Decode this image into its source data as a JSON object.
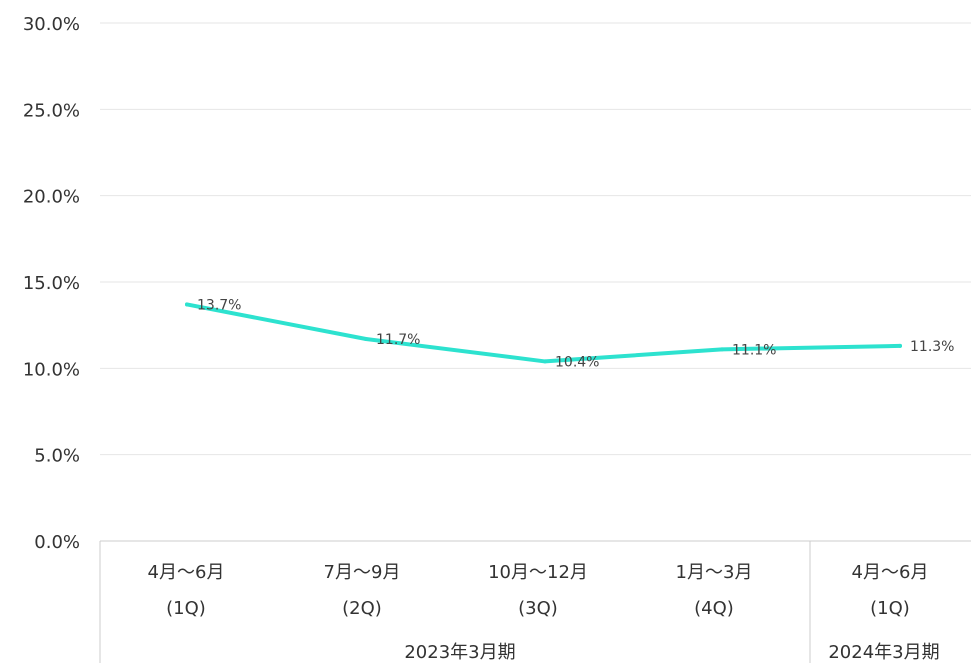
{
  "chart_data": {
    "type": "line",
    "title": "",
    "xlabel": "",
    "ylabel": "",
    "ylim": [
      0,
      30
    ],
    "y_ticks": [
      "0.0%",
      "5.0%",
      "10.0%",
      "15.0%",
      "20.0%",
      "25.0%",
      "30.0%"
    ],
    "y_tick_values": [
      0,
      5,
      10,
      15,
      20,
      25,
      30
    ],
    "categories": [
      {
        "line1": "4月〜6月",
        "line2": "(1Q)"
      },
      {
        "line1": "7月〜9月",
        "line2": "(2Q)"
      },
      {
        "line1": "10月〜12月",
        "line2": "(3Q)"
      },
      {
        "line1": "1月〜3月",
        "line2": "(4Q)"
      },
      {
        "line1": "4月〜6月",
        "line2": "(1Q)"
      }
    ],
    "groups": [
      {
        "label": "2023年3月期",
        "categories": [
          0,
          1,
          2,
          3
        ]
      },
      {
        "label": "2024年3月期",
        "categories": [
          4
        ]
      }
    ],
    "series": [
      {
        "values": [
          13.7,
          11.7,
          10.4,
          11.1,
          11.3
        ],
        "labels": [
          "13.7%",
          "11.7%",
          "10.4%",
          "11.1%",
          "11.3%"
        ],
        "color": "#2de2cf"
      }
    ],
    "grid": true,
    "gridline_color": "#e6e6e6",
    "axis_color": "#cccccc"
  }
}
